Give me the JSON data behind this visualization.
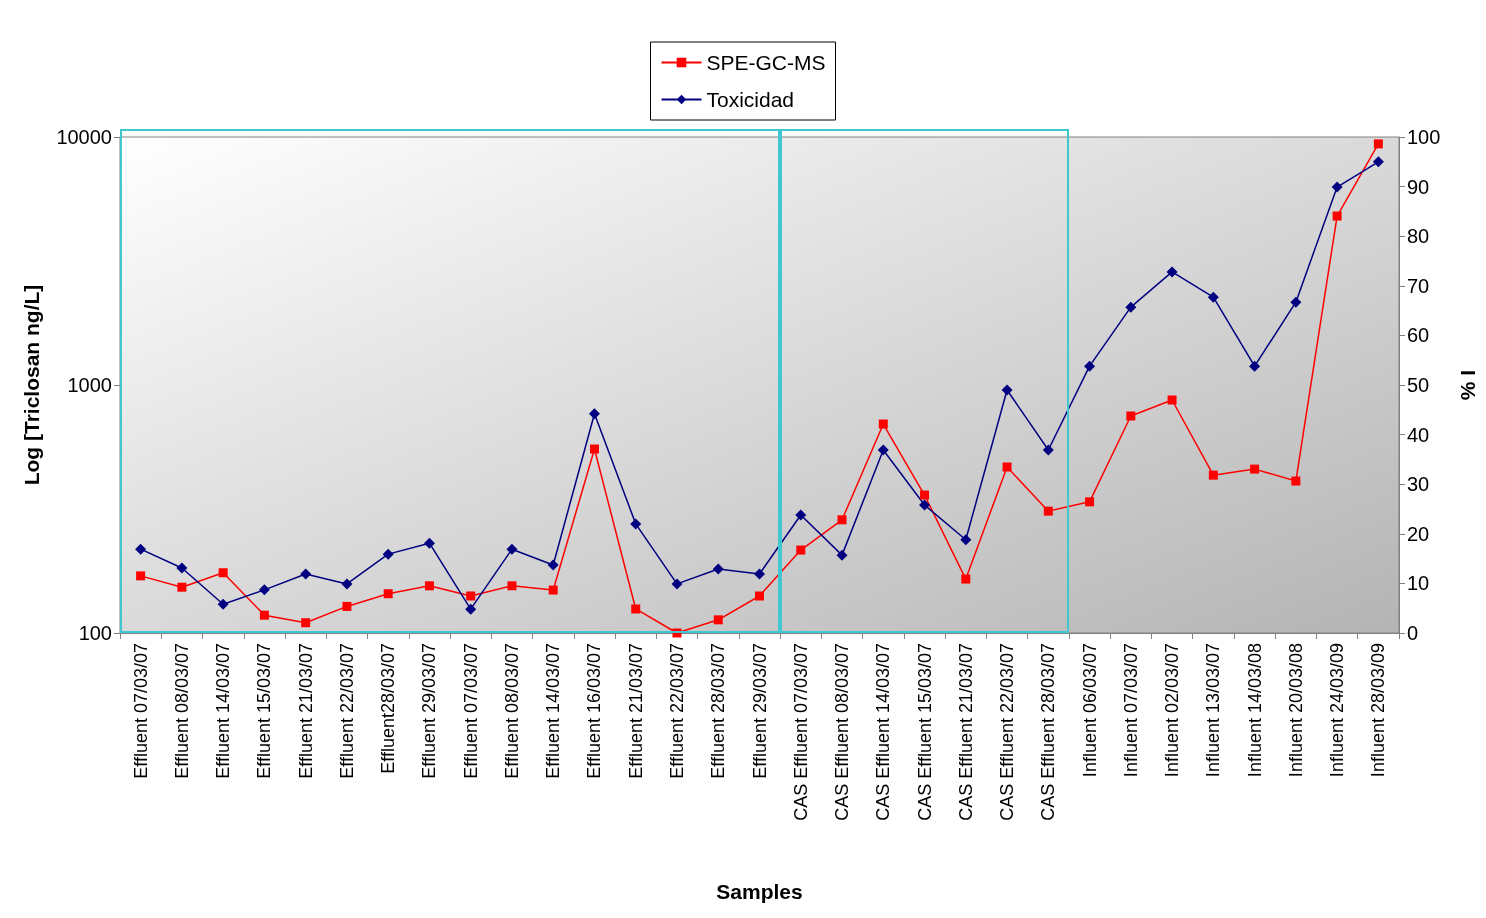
{
  "chart_data": {
    "type": "line",
    "xlabel": "Samples",
    "ylabel": "Log [Triclosan ng/L]",
    "y2label": "% I",
    "categories": [
      "Effluent 07/03/07",
      "Effluent 08/03/07",
      "Effluent 14/03/07",
      "Effluent 15/03/07",
      "Effluent 21/03/07",
      "Effluent 22/03/07",
      "Effluent28/03/07",
      "Effluent 29/03/07",
      "Effluent 07/03/07",
      "Effluent 08/03/07",
      "Effluent 14/03/07",
      "Effluent 16/03/07",
      "Effluent 21/03/07",
      "Effluent 22/03/07",
      "Effluent 28/03/07",
      "Effluent 29/03/07",
      "CAS Effluent 07/03/07",
      "CAS Effluent 08/03/07",
      "CAS Effluent 14/03/07",
      "CAS Effluent 15/03/07",
      "CAS Effluent 21/03/07",
      "CAS Effluent 22/03/07",
      "CAS Effluent 28/03/07",
      "Influent 06/03/07",
      "Influent 07/03/07",
      "Influent 02/03/07",
      "Influent 13/03/07",
      "Influent 14/03/08",
      "Influent 20/03/08",
      "Influent 24/03/09",
      "Influent 28/03/09"
    ],
    "series": [
      {
        "name": "SPE-GC-MS",
        "color": "#ff0000",
        "marker": "square",
        "values": [
          170,
          153,
          175,
          118,
          110,
          128,
          144,
          155,
          141,
          155,
          149,
          552,
          125,
          100,
          113,
          141,
          216,
          286,
          696,
          360,
          165,
          467,
          310,
          338,
          750,
          870,
          433,
          458,
          410,
          4800,
          9380
        ]
      },
      {
        "name": "Toxicidad",
        "color": "#000080",
        "marker": "diamond",
        "axis": "y2",
        "values": [
          16.9,
          13.1,
          5.8,
          8.7,
          11.9,
          9.9,
          15.9,
          18.1,
          4.8,
          16.9,
          13.7,
          44.2,
          22.0,
          9.9,
          12.9,
          11.9,
          23.8,
          15.7,
          36.9,
          25.8,
          18.8,
          49.0,
          36.9,
          53.8,
          65.7,
          72.8,
          67.7,
          53.8,
          66.7,
          89.9,
          95.0
        ]
      }
    ],
    "log": "y",
    "ylim": [
      100,
      10000
    ],
    "yticks": [
      100,
      1000,
      10000
    ],
    "y2lim": [
      0,
      100
    ],
    "y2ticks": [
      0,
      10,
      20,
      30,
      40,
      50,
      60,
      70,
      80,
      90,
      100
    ],
    "legend": "top",
    "grid": false,
    "line_style": "solid"
  }
}
